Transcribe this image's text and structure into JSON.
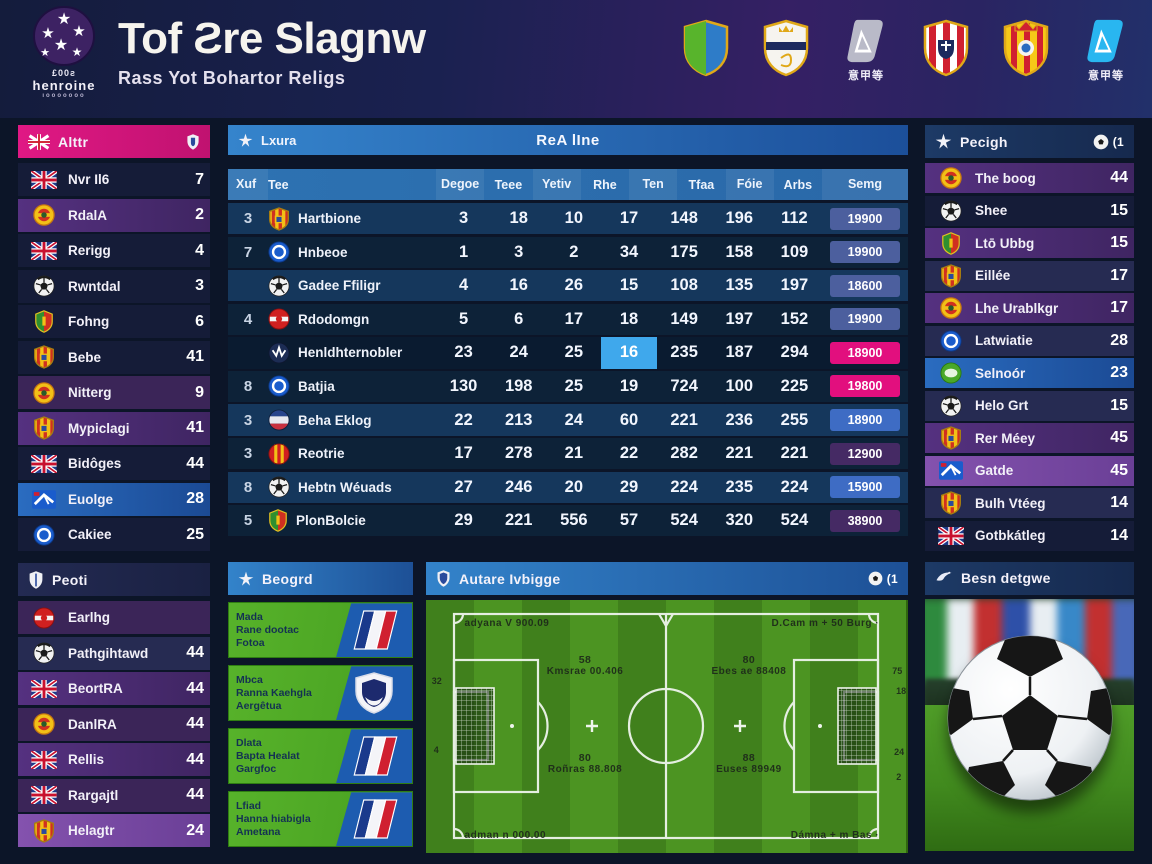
{
  "header": {
    "logo": {
      "line1": "£00ƨ",
      "line2": "henroine",
      "line3": "ıooooooo"
    },
    "title": "Tof Ƨre Slagnw",
    "subtitle": "Rass Yot Bohartor Religs",
    "badges": [
      {
        "name": "shield-green-blue-badge",
        "type": "split-shield",
        "caption": ""
      },
      {
        "name": "shield-white-crown-badge",
        "type": "white-shield",
        "caption": ""
      },
      {
        "name": "league-gray-badge",
        "type": "laliga",
        "color": "#b9bac8",
        "caption": "意甲等"
      },
      {
        "name": "shield-red-stripes-badge",
        "type": "striped-shield-red",
        "caption": ""
      },
      {
        "name": "shield-yellow-stripes-badge",
        "type": "striped-shield-yellow",
        "caption": ""
      },
      {
        "name": "league-cyan-badge",
        "type": "laliga",
        "color": "#29b6f0",
        "caption": "意甲等"
      }
    ]
  },
  "left_sidebar": {
    "section1": {
      "title": "Alttr",
      "rows": [
        {
          "icon": "uk-flag-icon",
          "name": "Nvr Il6",
          "value": "7",
          "bg": "dark"
        },
        {
          "icon": "round-yellow-icon",
          "name": "RdalA",
          "value": "2",
          "bg": "purple"
        },
        {
          "icon": "uk-flag-icon",
          "name": "Rerigg",
          "value": "4",
          "bg": "dark"
        },
        {
          "icon": "ball-icon",
          "name": "Rwntdal",
          "value": "3",
          "bg": "dark"
        },
        {
          "icon": "green-red-shield-icon",
          "name": "Fohng",
          "value": "6",
          "bg": "dark"
        },
        {
          "icon": "crest-yellow-icon",
          "name": "Bebe",
          "value": "41",
          "bg": "dark"
        },
        {
          "icon": "round-yellow-icon",
          "name": "Nitterg",
          "value": "9",
          "bg": "purple2"
        },
        {
          "icon": "crest-yellow-icon",
          "name": "Mypiclagi",
          "value": "41",
          "bg": "purple"
        },
        {
          "icon": "uk-flag-icon",
          "name": "Bidôges",
          "value": "44",
          "bg": "dark"
        },
        {
          "icon": "flag-blue-icon",
          "name": "Euolge",
          "value": "28",
          "bg": "blue"
        },
        {
          "icon": "round-blue-icon",
          "name": "Cakiee",
          "value": "25",
          "bg": "dark"
        }
      ]
    },
    "section2": {
      "title": "Peoti",
      "rows": [
        {
          "icon": "round-red-icon",
          "name": "Earlhg",
          "value": "",
          "bg": "purple2"
        },
        {
          "icon": "ball-icon",
          "name": "Pathgihtawd",
          "value": "44",
          "bg": "dark2"
        },
        {
          "icon": "uk-flag-icon",
          "name": "BeortRA",
          "value": "44",
          "bg": "purple"
        },
        {
          "icon": "round-yellow-icon",
          "name": "DanlRA",
          "value": "44",
          "bg": "purple2"
        },
        {
          "icon": "uk-flag-icon",
          "name": "Rellis",
          "value": "44",
          "bg": "purple"
        },
        {
          "icon": "uk-flag-icon",
          "name": "Rargajtl",
          "value": "44",
          "bg": "purple2"
        },
        {
          "icon": "crest-yellow-icon",
          "name": "Helagtr",
          "value": "24",
          "bg": "bright"
        }
      ]
    }
  },
  "table": {
    "bar_left": "Lxura",
    "bar_title": "ReA lIne",
    "columns": [
      "Xuf",
      "Tee",
      "Degoe",
      "Teee",
      "Yetiv",
      "Rhe",
      "Ten",
      "Tfaa",
      "Fóie",
      "Arbs",
      "Semg"
    ],
    "rows": [
      {
        "icon": "crest-yellow-icon",
        "pos": "3",
        "team": "Hartbione",
        "values": [
          "3",
          "18",
          "10",
          "17",
          "148",
          "196",
          "112"
        ],
        "badge": "19900",
        "badge_color": "slate",
        "bg": "light",
        "highlight_index": -1
      },
      {
        "icon": "round-blue-icon",
        "pos": "7",
        "team": "Hnbeoe",
        "values": [
          "1",
          "3",
          "2",
          "34",
          "175",
          "158",
          "109"
        ],
        "badge": "19900",
        "badge_color": "slate",
        "bg": "dark",
        "highlight_index": -1
      },
      {
        "icon": "ball-icon",
        "pos": "",
        "team": "Gadee Ffiligr",
        "values": [
          "4",
          "16",
          "26",
          "15",
          "108",
          "135",
          "197"
        ],
        "badge": "18600",
        "badge_color": "slate",
        "bg": "light",
        "highlight_index": -1
      },
      {
        "icon": "round-red-icon",
        "pos": "4",
        "team": "Rdodomgn",
        "values": [
          "5",
          "6",
          "17",
          "18",
          "149",
          "197",
          "152"
        ],
        "badge": "19900",
        "badge_color": "slate",
        "bg": "dark",
        "highlight_index": -1
      },
      {
        "icon": "round-navy-icon",
        "pos": "",
        "team": "Henldhternobler",
        "values": [
          "23",
          "24",
          "25",
          "16",
          "235",
          "187",
          "294"
        ],
        "badge": "18900",
        "badge_color": "pink",
        "bg": "darker",
        "highlight_index": 3
      },
      {
        "icon": "round-blue-icon",
        "pos": "8",
        "team": "Batjia",
        "values": [
          "130",
          "198",
          "25",
          "19",
          "724",
          "100",
          "225"
        ],
        "badge": "19800",
        "badge_color": "pink",
        "bg": "dark",
        "highlight_index": -1
      },
      {
        "icon": "round-tricolor-icon",
        "pos": "3",
        "team": "Beha Eklog",
        "values": [
          "22",
          "213",
          "24",
          "60",
          "221",
          "236",
          "255"
        ],
        "badge": "18900",
        "badge_color": "blue",
        "bg": "light",
        "highlight_index": -1
      },
      {
        "icon": "round-redyellow-icon",
        "pos": "3",
        "team": "Reotrie",
        "values": [
          "17",
          "278",
          "21",
          "22",
          "282",
          "221",
          "221"
        ],
        "badge": "12900",
        "badge_color": "dkpurple",
        "bg": "dark",
        "highlight_index": -1
      },
      {
        "icon": "ball-icon",
        "pos": "8",
        "team": "Hebtn Wéuads",
        "values": [
          "27",
          "246",
          "20",
          "29",
          "224",
          "235",
          "224"
        ],
        "badge": "15900",
        "badge_color": "blue",
        "bg": "light",
        "highlight_index": -1
      },
      {
        "icon": "green-red-shield-icon",
        "pos": "5",
        "team": "PlonBolcie",
        "values": [
          "29",
          "221",
          "556",
          "57",
          "524",
          "320",
          "524"
        ],
        "badge": "38900",
        "badge_color": "dkpurple",
        "bg": "dark",
        "highlight_index": -1
      }
    ]
  },
  "cards_panel": {
    "title": "Beogrd",
    "cards": [
      {
        "lines": [
          "Mada",
          "Rane dootac",
          "Fotoa"
        ],
        "flag": "france"
      },
      {
        "lines": [
          "Mbca",
          "Ranna Kaehgla",
          "Aergêtua"
        ],
        "flag": "shield"
      },
      {
        "lines": [
          "Dlata",
          "Bapta Healat",
          "Gargfoc"
        ],
        "flag": "france"
      },
      {
        "lines": [
          "Lfiad",
          "Hanna hiabigla",
          "Ametana"
        ],
        "flag": "france"
      }
    ]
  },
  "pitch_panel": {
    "title": "Autare Ivbigge",
    "count": "(1",
    "labels": {
      "top_left": "adyana V 900.09",
      "top_right": "D.Cam m + 50 Burg ·",
      "mid_left_num": "58",
      "mid_left": "Kmsrae 00.406",
      "mid_right_num": "80",
      "mid_right": "Ebes ae 88408",
      "low_left_num": "80",
      "low_left": "Roñras 88.808",
      "low_right_num": "88",
      "low_right": "Euses 89949",
      "bottom_left": "adman n 000.00",
      "bottom_right": "Dámna + m Bas ·"
    },
    "edges": {
      "left_top": "32",
      "left_bottom": "4",
      "right_top": "75",
      "right_mid": "18",
      "right_low": "24",
      "right_bottom": "2"
    }
  },
  "right_sidebar": {
    "title": "Pecigh",
    "count": "(1",
    "rows": [
      {
        "icon": "round-yellow-icon",
        "name": "The boog",
        "value": "44",
        "bg": "purple"
      },
      {
        "icon": "ball-icon",
        "name": "Shee",
        "value": "15",
        "bg": "dark"
      },
      {
        "icon": "green-red-shield-icon",
        "name": "Ltō Ubbg",
        "value": "15",
        "bg": "purple"
      },
      {
        "icon": "crest-yellow-icon",
        "name": "Eillée",
        "value": "17",
        "bg": "dark2"
      },
      {
        "icon": "round-yellow-icon",
        "name": "Lhe Urablkgr",
        "value": "17",
        "bg": "purple"
      },
      {
        "icon": "round-blue-icon",
        "name": "Latwiatie",
        "value": "28",
        "bg": "dark2"
      },
      {
        "icon": "round-green-icon",
        "name": "Selnoór",
        "value": "23",
        "bg": "blue"
      },
      {
        "icon": "ball-icon",
        "name": "Helo Grt",
        "value": "15",
        "bg": "dark2"
      },
      {
        "icon": "crest-yellow-icon",
        "name": "Rer Méey",
        "value": "45",
        "bg": "purple"
      },
      {
        "icon": "flag-blue-icon",
        "name": "Gatde",
        "value": "45",
        "bg": "bright"
      },
      {
        "icon": "crest-yellow-icon",
        "name": "Bulh Vtéeg",
        "value": "14",
        "bg": "dark2"
      },
      {
        "icon": "uk-flag-icon",
        "name": "Gotbkátleg",
        "value": "14",
        "bg": "dark"
      }
    ]
  },
  "photo_panel": {
    "title": "Besn detgwe"
  }
}
